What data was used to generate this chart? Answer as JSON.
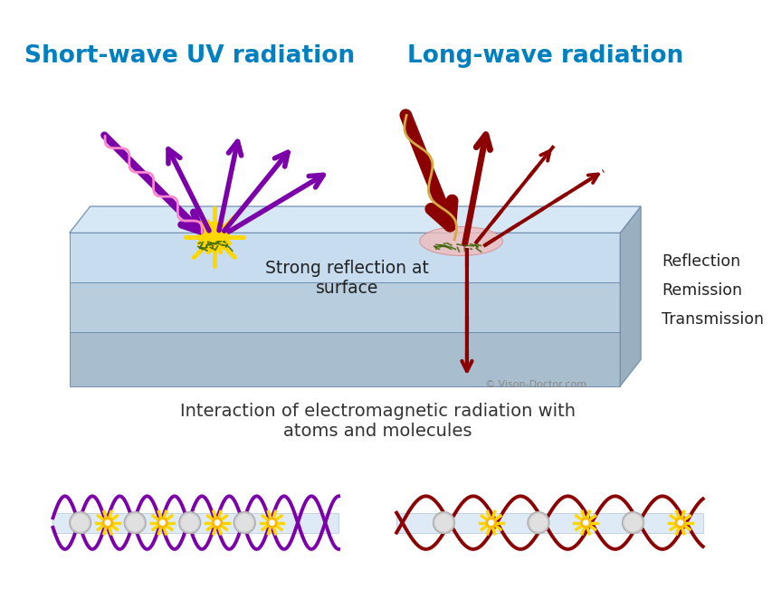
{
  "title_left": "Short-wave UV radiation",
  "title_right": "Long-wave radiation",
  "title_color": "#0080C0",
  "title_fontsize": 19,
  "label_strong_reflection": "Strong reflection at\nsurface",
  "label_right_lines": [
    "Reflection",
    "Remission",
    "Transmission"
  ],
  "label_bottom_title": "Interaction of electromagnetic radiation with\natoms and molecules",
  "copyright": "© Vison-Doctor.com",
  "purple_color": "#7B00AA",
  "red_dark": "#8B0000",
  "yellow_color": "#FFD700",
  "background": "#FFFFFF",
  "box_top_face": "#D6E8F5",
  "box_layer1": "#C8DCF0",
  "box_layer2": "#B8CEDF",
  "box_layer3": "#A8BECE",
  "box_edge": "#7090B0",
  "box_right_face": "#9AAFBF"
}
